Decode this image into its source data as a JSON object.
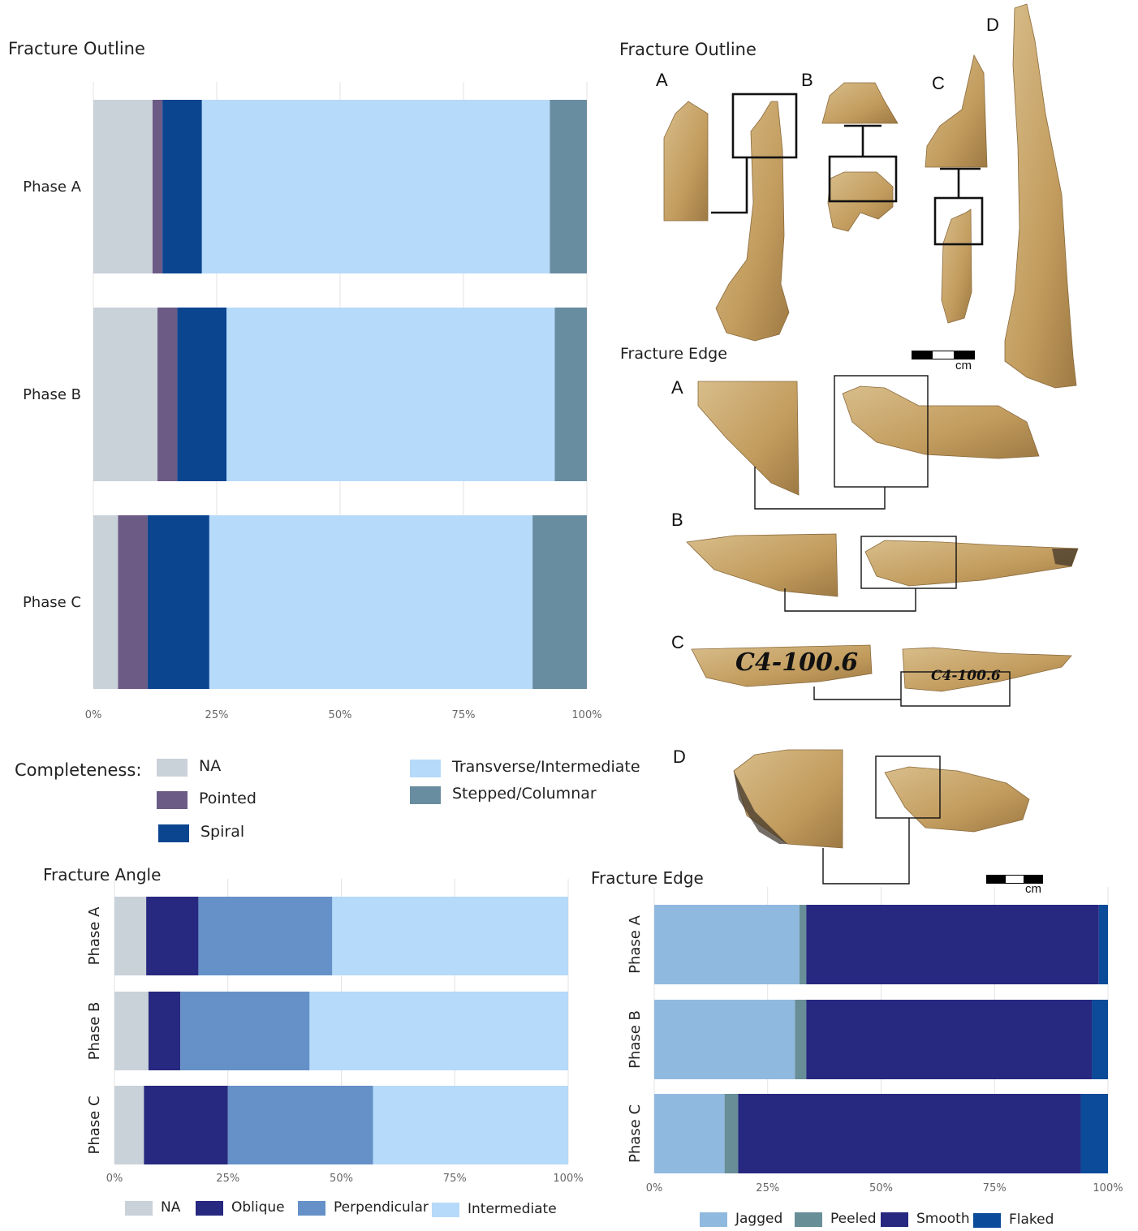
{
  "chart_data": [
    {
      "type": "bar",
      "orientation": "horizontal",
      "stacked": true,
      "title": "Fracture Outline",
      "categories": [
        "Phase A",
        "Phase B",
        "Phase C"
      ],
      "xlim": [
        0,
        100
      ],
      "xticks": [
        "0%",
        "25%",
        "50%",
        "75%",
        "100%"
      ],
      "legend_title": "Completeness:",
      "series": [
        {
          "name": "NA",
          "color": "#c9d1d9",
          "values": [
            12,
            13,
            5
          ]
        },
        {
          "name": "Pointed",
          "color": "#6b5b85",
          "values": [
            2,
            4,
            6
          ]
        },
        {
          "name": "Spiral",
          "color": "#0b4590",
          "values": [
            8,
            10,
            12.5
          ]
        },
        {
          "name": "Transverse/Intermediate",
          "color": "#b5dafa",
          "values": [
            70.5,
            66.5,
            65.5
          ]
        },
        {
          "name": "Stepped/Columnar",
          "color": "#688ca0",
          "values": [
            7.5,
            6.5,
            11
          ]
        }
      ]
    },
    {
      "type": "bar",
      "orientation": "horizontal",
      "stacked": true,
      "title": "Fracture Angle",
      "categories": [
        "Phase A",
        "Phase B",
        "Phase C"
      ],
      "xlim": [
        0,
        100
      ],
      "xticks": [
        "0%",
        "25%",
        "50%",
        "75%",
        "100%"
      ],
      "series": [
        {
          "name": "NA",
          "color": "#c9d1d9",
          "values": [
            7,
            7.5,
            6.5
          ]
        },
        {
          "name": "Oblique",
          "color": "#27287f",
          "values": [
            11.5,
            7,
            18.5
          ]
        },
        {
          "name": "Perpendicular",
          "color": "#6591c8",
          "values": [
            29.5,
            28.5,
            32
          ]
        },
        {
          "name": "Intermediate",
          "color": "#b5dafa",
          "values": [
            52,
            57,
            43
          ]
        }
      ]
    },
    {
      "type": "bar",
      "orientation": "horizontal",
      "stacked": true,
      "title": "Fracture Edge",
      "categories": [
        "Phase A",
        "Phase B",
        "Phase C"
      ],
      "xlim": [
        0,
        100
      ],
      "xticks": [
        "0%",
        "25%",
        "50%",
        "75%",
        "100%"
      ],
      "series": [
        {
          "name": "Jagged",
          "color": "#90b9df",
          "values": [
            32,
            31,
            15.5
          ]
        },
        {
          "name": "Peeled",
          "color": "#688f98",
          "values": [
            1.5,
            2.5,
            3
          ]
        },
        {
          "name": "Smooth",
          "color": "#27287f",
          "values": [
            64.5,
            63,
            75.5
          ]
        },
        {
          "name": "Flaked",
          "color": "#0b4b99",
          "values": [
            2,
            3.5,
            6
          ]
        }
      ]
    }
  ],
  "photos": {
    "outline_title": "Fracture Outline",
    "outline_letters": [
      "A",
      "B",
      "C",
      "D"
    ],
    "edge_title": "Fracture Edge",
    "edge_letters": [
      "A",
      "B",
      "C",
      "D"
    ],
    "specimen_label": "C4-100.6",
    "scale_unit": "cm",
    "bone_color": "#c9a56c"
  }
}
